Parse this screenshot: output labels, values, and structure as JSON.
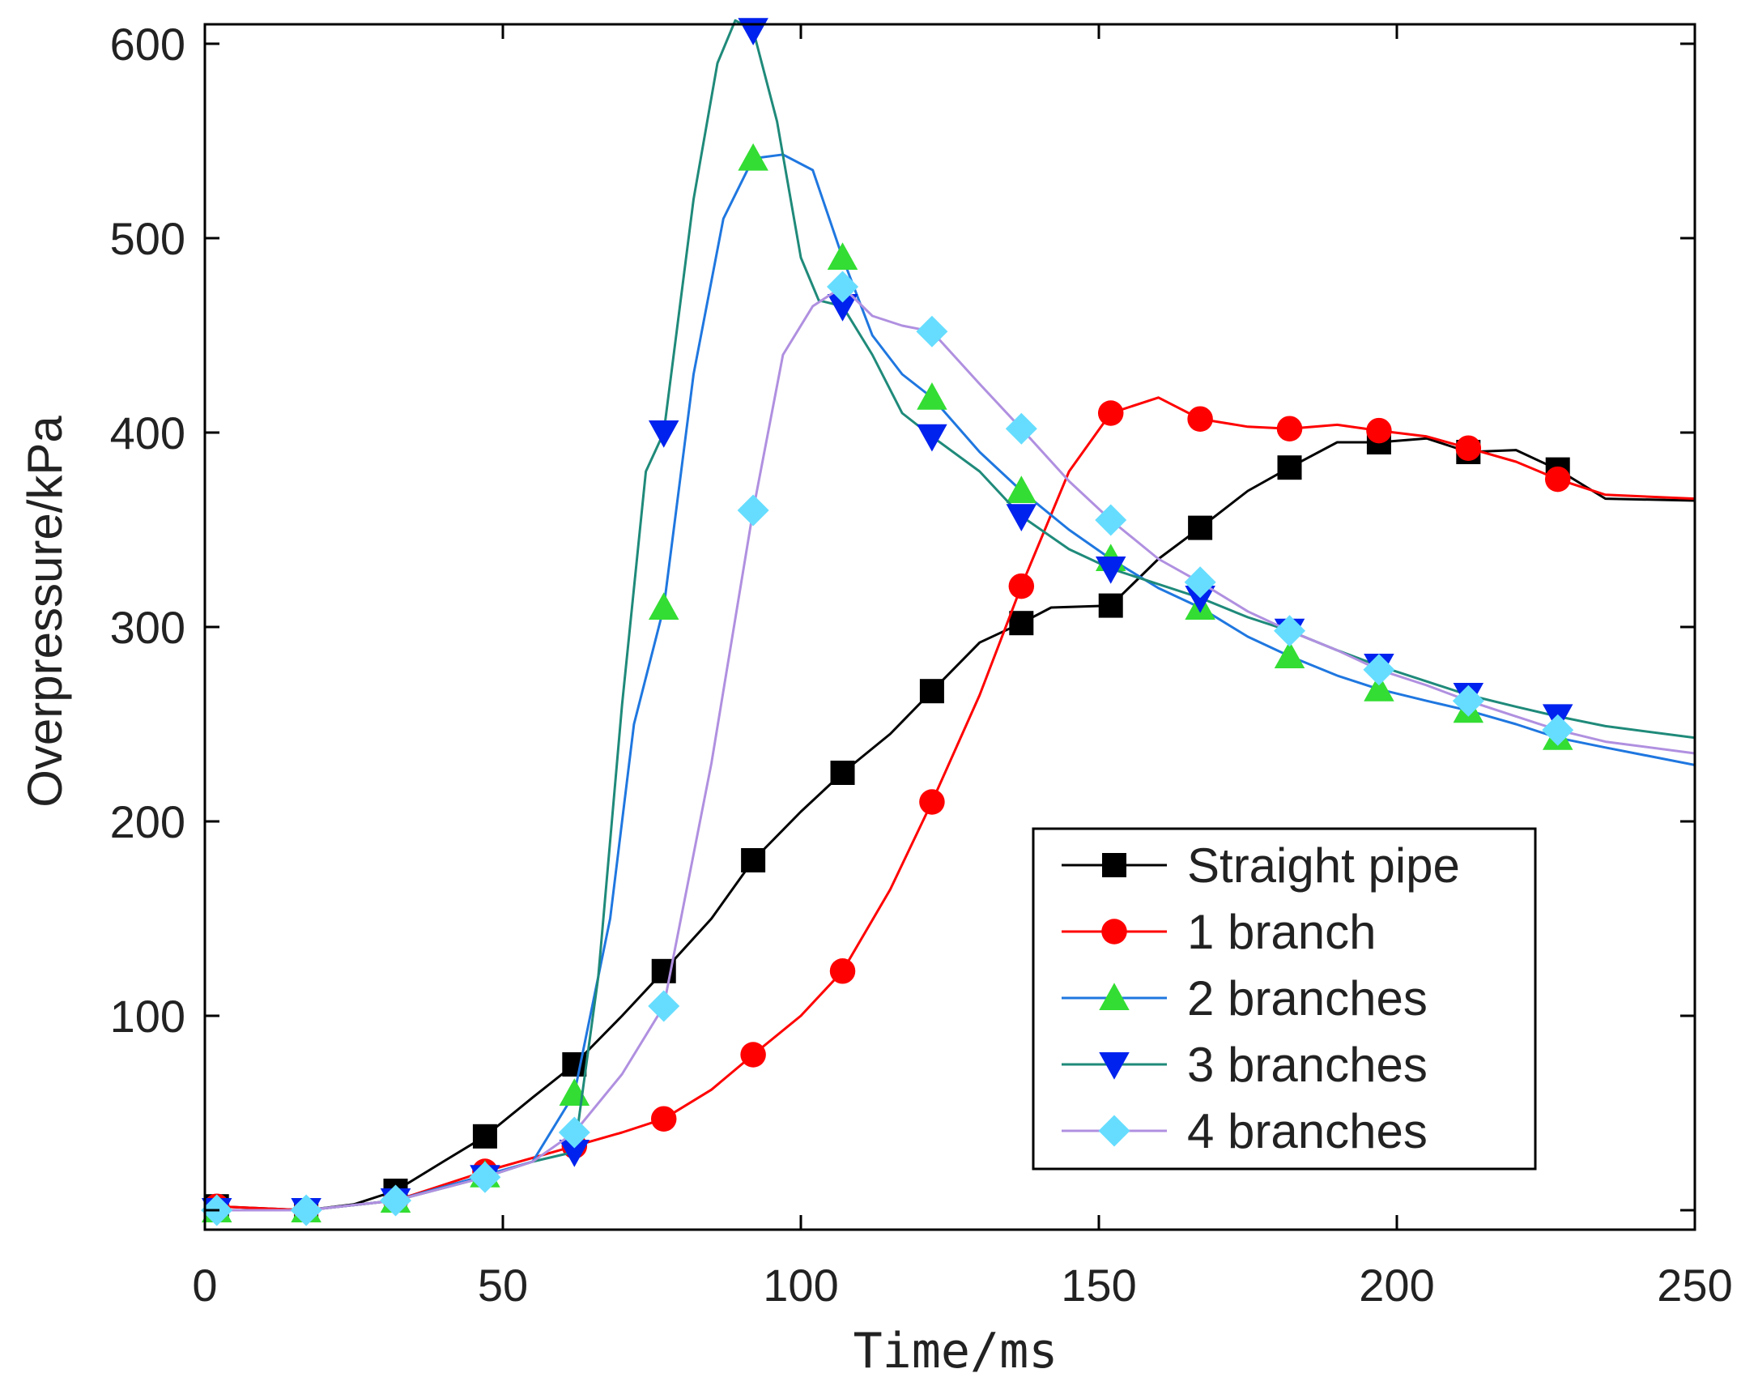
{
  "chart_data": {
    "type": "line",
    "title": "",
    "xlabel": "Time/ms",
    "ylabel": "Overpressure/kPa",
    "xlim": [
      0,
      250
    ],
    "ylim": [
      -10,
      610
    ],
    "x_ticks": [
      "0",
      "50",
      "100",
      "150",
      "200",
      "250"
    ],
    "y_ticks": [
      "100",
      "200",
      "300",
      "400",
      "500",
      "600"
    ],
    "grid": false,
    "legend_position": "bottom-right",
    "series": [
      {
        "name": "Straight pipe",
        "color": "#000000",
        "marker": "square",
        "markers_x": [
          2,
          17,
          32,
          47,
          62,
          77,
          92,
          107,
          122,
          137,
          152,
          167,
          182,
          197,
          212,
          227
        ],
        "markers_y": [
          2,
          0,
          10,
          38,
          75,
          123,
          180,
          225,
          267,
          302,
          311,
          351,
          382,
          395,
          390,
          381
        ],
        "curve": [
          [
            2,
            2
          ],
          [
            17,
            0
          ],
          [
            25,
            3
          ],
          [
            32,
            10
          ],
          [
            40,
            25
          ],
          [
            47,
            38
          ],
          [
            55,
            58
          ],
          [
            62,
            75
          ],
          [
            70,
            100
          ],
          [
            77,
            123
          ],
          [
            85,
            150
          ],
          [
            92,
            180
          ],
          [
            100,
            205
          ],
          [
            107,
            225
          ],
          [
            115,
            245
          ],
          [
            122,
            267
          ],
          [
            130,
            292
          ],
          [
            137,
            302
          ],
          [
            142,
            310
          ],
          [
            152,
            311
          ],
          [
            160,
            335
          ],
          [
            167,
            351
          ],
          [
            175,
            370
          ],
          [
            182,
            382
          ],
          [
            190,
            395
          ],
          [
            197,
            395
          ],
          [
            205,
            397
          ],
          [
            212,
            390
          ],
          [
            220,
            391
          ],
          [
            227,
            381
          ],
          [
            235,
            366
          ],
          [
            250,
            365
          ]
        ]
      },
      {
        "name": "1 branch",
        "color": "#ff0000",
        "marker": "circle",
        "markers_x": [
          2,
          17,
          32,
          47,
          62,
          77,
          92,
          107,
          122,
          137,
          152,
          167,
          182,
          197,
          212,
          227
        ],
        "markers_y": [
          2,
          0,
          5,
          20,
          33,
          47,
          80,
          123,
          210,
          321,
          410,
          407,
          402,
          401,
          392,
          376
        ],
        "curve": [
          [
            2,
            2
          ],
          [
            17,
            0
          ],
          [
            32,
            5
          ],
          [
            47,
            20
          ],
          [
            62,
            33
          ],
          [
            70,
            40
          ],
          [
            77,
            47
          ],
          [
            85,
            62
          ],
          [
            92,
            80
          ],
          [
            100,
            100
          ],
          [
            107,
            123
          ],
          [
            115,
            165
          ],
          [
            122,
            210
          ],
          [
            130,
            265
          ],
          [
            137,
            321
          ],
          [
            145,
            380
          ],
          [
            152,
            410
          ],
          [
            160,
            418
          ],
          [
            167,
            407
          ],
          [
            175,
            403
          ],
          [
            182,
            402
          ],
          [
            190,
            404
          ],
          [
            197,
            401
          ],
          [
            205,
            398
          ],
          [
            212,
            392
          ],
          [
            220,
            385
          ],
          [
            227,
            376
          ],
          [
            235,
            368
          ],
          [
            250,
            366
          ]
        ]
      },
      {
        "name": "2 branches",
        "color": "#1f77e0",
        "marker": "triangle-up",
        "marker_color": "#33dd33",
        "markers_x": [
          2,
          17,
          32,
          47,
          62,
          77,
          92,
          107,
          122,
          137,
          152,
          167,
          182,
          197,
          212,
          227
        ],
        "markers_y": [
          0,
          0,
          5,
          18,
          60,
          310,
          541,
          490,
          418,
          370,
          335,
          310,
          285,
          268,
          257,
          243
        ],
        "curve": [
          [
            2,
            0
          ],
          [
            17,
            0
          ],
          [
            32,
            5
          ],
          [
            47,
            18
          ],
          [
            55,
            25
          ],
          [
            62,
            60
          ],
          [
            68,
            150
          ],
          [
            72,
            250
          ],
          [
            77,
            310
          ],
          [
            82,
            430
          ],
          [
            87,
            510
          ],
          [
            92,
            541
          ],
          [
            97,
            543
          ],
          [
            102,
            535
          ],
          [
            107,
            490
          ],
          [
            112,
            450
          ],
          [
            117,
            430
          ],
          [
            122,
            418
          ],
          [
            130,
            390
          ],
          [
            137,
            370
          ],
          [
            145,
            350
          ],
          [
            152,
            335
          ],
          [
            160,
            320
          ],
          [
            167,
            310
          ],
          [
            175,
            295
          ],
          [
            182,
            285
          ],
          [
            190,
            275
          ],
          [
            197,
            268
          ],
          [
            205,
            262
          ],
          [
            212,
            257
          ],
          [
            220,
            250
          ],
          [
            227,
            243
          ],
          [
            235,
            238
          ],
          [
            250,
            229
          ]
        ]
      },
      {
        "name": "3 branches",
        "color": "#1f8a7a",
        "marker": "triangle-down",
        "marker_color": "#0022ee",
        "markers_x": [
          2,
          17,
          32,
          47,
          62,
          77,
          92,
          107,
          122,
          137,
          152,
          167,
          182,
          197,
          212,
          227
        ],
        "markers_y": [
          0,
          0,
          5,
          17,
          30,
          400,
          607,
          465,
          398,
          357,
          330,
          315,
          298,
          280,
          265,
          254
        ],
        "curve": [
          [
            2,
            0
          ],
          [
            17,
            0
          ],
          [
            32,
            5
          ],
          [
            47,
            17
          ],
          [
            55,
            25
          ],
          [
            62,
            30
          ],
          [
            66,
            120
          ],
          [
            70,
            260
          ],
          [
            74,
            380
          ],
          [
            77,
            400
          ],
          [
            82,
            520
          ],
          [
            86,
            590
          ],
          [
            89,
            612
          ],
          [
            92,
            607
          ],
          [
            96,
            560
          ],
          [
            100,
            490
          ],
          [
            103,
            468
          ],
          [
            107,
            465
          ],
          [
            112,
            440
          ],
          [
            117,
            410
          ],
          [
            122,
            398
          ],
          [
            130,
            380
          ],
          [
            137,
            357
          ],
          [
            145,
            340
          ],
          [
            152,
            330
          ],
          [
            160,
            322
          ],
          [
            167,
            315
          ],
          [
            175,
            305
          ],
          [
            182,
            298
          ],
          [
            190,
            288
          ],
          [
            197,
            280
          ],
          [
            205,
            272
          ],
          [
            212,
            265
          ],
          [
            220,
            259
          ],
          [
            227,
            254
          ],
          [
            235,
            249
          ],
          [
            250,
            243
          ]
        ]
      },
      {
        "name": "4 branches",
        "color": "#b090e0",
        "marker": "diamond",
        "marker_color": "#66ddff",
        "markers_x": [
          2,
          17,
          32,
          47,
          62,
          77,
          92,
          107,
          122,
          137,
          152,
          167,
          182,
          197,
          212,
          227
        ],
        "markers_y": [
          0,
          0,
          5,
          17,
          40,
          105,
          360,
          475,
          452,
          402,
          355,
          323,
          298,
          278,
          262,
          247
        ],
        "curve": [
          [
            2,
            0
          ],
          [
            17,
            0
          ],
          [
            32,
            5
          ],
          [
            47,
            17
          ],
          [
            55,
            25
          ],
          [
            62,
            40
          ],
          [
            70,
            70
          ],
          [
            77,
            105
          ],
          [
            85,
            230
          ],
          [
            92,
            360
          ],
          [
            97,
            440
          ],
          [
            102,
            465
          ],
          [
            107,
            475
          ],
          [
            112,
            460
          ],
          [
            117,
            455
          ],
          [
            122,
            452
          ],
          [
            130,
            425
          ],
          [
            137,
            402
          ],
          [
            145,
            375
          ],
          [
            152,
            355
          ],
          [
            160,
            335
          ],
          [
            167,
            323
          ],
          [
            175,
            308
          ],
          [
            182,
            298
          ],
          [
            190,
            288
          ],
          [
            197,
            278
          ],
          [
            205,
            270
          ],
          [
            212,
            262
          ],
          [
            220,
            254
          ],
          [
            227,
            247
          ],
          [
            235,
            241
          ],
          [
            250,
            235
          ]
        ]
      }
    ]
  }
}
